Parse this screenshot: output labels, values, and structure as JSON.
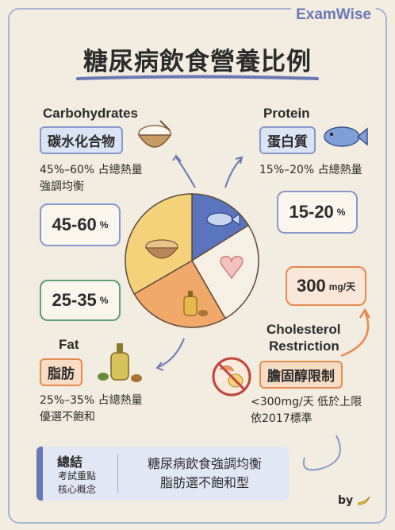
{
  "brand": "ExamWise",
  "title": "糖尿病飲食營養比例",
  "carbs": {
    "label_en": "Carbohydrates",
    "tag": "碳水化合物",
    "desc_line1": "45%–60% 占總熱量",
    "desc_line2": "強調均衡",
    "value": "45-60",
    "unit": "%"
  },
  "protein": {
    "label_en": "Protein",
    "tag": "蛋白質",
    "desc_line1": "15%–20% 占總熱量",
    "value": "15-20",
    "unit": "%"
  },
  "fat": {
    "label_en": "Fat",
    "tag": "脂肪",
    "desc_line1": "25%–35% 占總熱量",
    "desc_line2": "優選不飽和",
    "value": "25-35",
    "unit": "%"
  },
  "cholesterol": {
    "label_en_line1": "Cholesterol",
    "label_en_line2": "Restriction",
    "tag": "膽固醇限制",
    "desc_line1": "<300mg/天 低於上限",
    "desc_line2": "依2017標準",
    "value": "300",
    "unit": "mg/天"
  },
  "summary": {
    "head": "總結",
    "sub_line1": "考試重點",
    "sub_line2": "核心概念",
    "main_line1": "糖尿病飲食強調均衡",
    "main_line2": "脂肪選不飽和型"
  },
  "byline": "by",
  "colors": {
    "carbs": "#f3d27a",
    "protein": "#5a74c0",
    "fat": "#f1a868",
    "other": "#f6efe4",
    "accent": "#6a78b6"
  }
}
